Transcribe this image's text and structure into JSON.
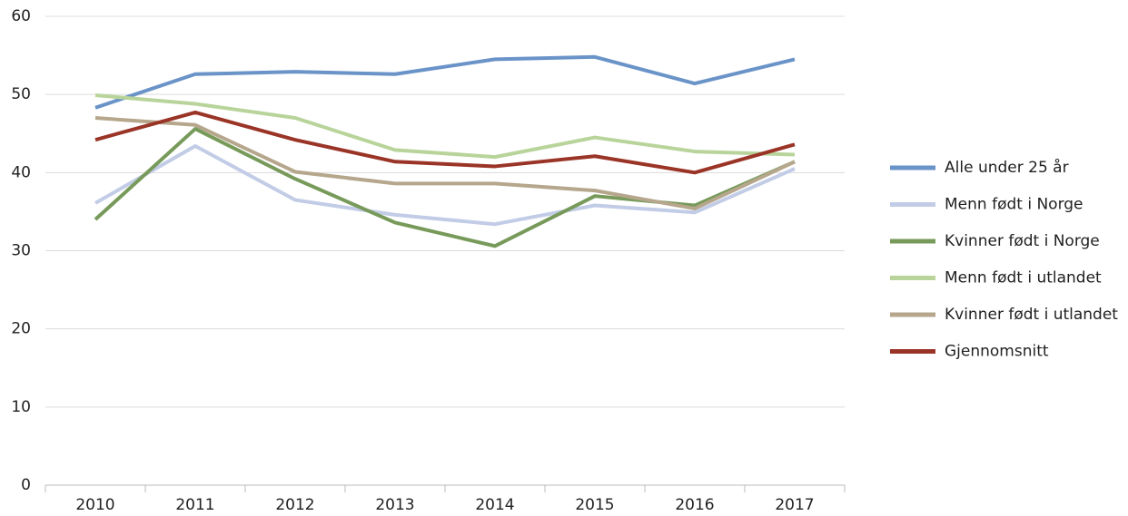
{
  "chart_data": {
    "type": "line",
    "categories": [
      "2010",
      "2011",
      "2012",
      "2013",
      "2014",
      "2015",
      "2016",
      "2017"
    ],
    "series": [
      {
        "name": "Alle under 25 år",
        "color": "#6a93c8",
        "values": [
          48.3,
          52.6,
          52.9,
          52.6,
          54.5,
          54.8,
          51.4,
          54.5
        ]
      },
      {
        "name": "Menn født i Norge",
        "color": "#c2cce6",
        "values": [
          36.1,
          43.4,
          36.5,
          34.6,
          33.4,
          35.8,
          34.9,
          40.5
        ]
      },
      {
        "name": "Kvinner født i Norge",
        "color": "#779a5a",
        "values": [
          34.0,
          45.6,
          39.2,
          33.6,
          30.6,
          37.0,
          35.8,
          41.4
        ]
      },
      {
        "name": "Menn født i utlandet",
        "color": "#b8d49a",
        "values": [
          49.9,
          48.8,
          47.0,
          42.9,
          42.0,
          44.5,
          42.7,
          42.3
        ]
      },
      {
        "name": "Kvinner født i utlandet",
        "color": "#b5a68c",
        "values": [
          47.0,
          46.1,
          40.1,
          38.6,
          38.6,
          37.7,
          35.4,
          41.4
        ]
      },
      {
        "name": "Gjennomsnitt",
        "color": "#9a3427",
        "values": [
          44.2,
          47.7,
          44.2,
          41.4,
          40.8,
          42.1,
          40.0,
          43.6
        ]
      }
    ],
    "ylim": [
      0,
      60
    ],
    "yticks": [
      0,
      10,
      20,
      30,
      40,
      50,
      60
    ],
    "grid": true,
    "legend": "right"
  }
}
